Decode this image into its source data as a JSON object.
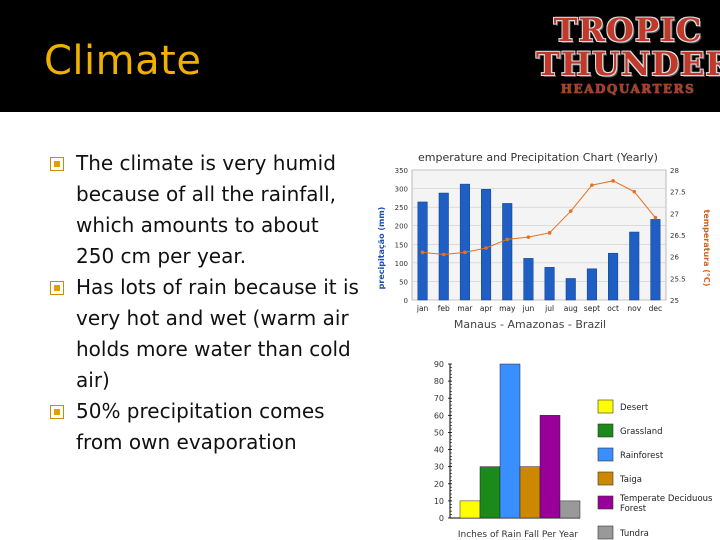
{
  "slide": {
    "title": "Climate",
    "logo": {
      "line1": "TROPIC",
      "line2": "THUNDER",
      "line3": "HEADQUARTERS"
    },
    "bullets": [
      "The climate is very humid because of all the rainfall, which amounts to about 250 cm per year.",
      "Has lots of rain because it is very hot and wet (warm air holds more water than cold air)",
      "50% precipitation comes from own evaporation"
    ]
  },
  "colors": {
    "title": "#f0b000",
    "bar_blue": "#1f5fc4",
    "line_orange": "#e8701a"
  },
  "chart_data": [
    {
      "type": "bar+line",
      "title": "emperature and Precipitation Chart (Yearly)",
      "subtitle": "Manaus - Amazonas - Brazil",
      "categories": [
        "jan",
        "feb",
        "mar",
        "apr",
        "may",
        "jun",
        "jul",
        "aug",
        "sept",
        "oct",
        "nov",
        "dec"
      ],
      "ylabel_left": "precipitação (mm)",
      "ylabel_right": "temperatura (°C)",
      "ylim_left": [
        0,
        350
      ],
      "ylim_right": [
        25,
        28
      ],
      "yticks_left": [
        "0",
        "50",
        "100",
        "150",
        "200",
        "250",
        "300",
        "350"
      ],
      "yticks_right": [
        "25",
        "25.5",
        "26",
        "26.5",
        "27",
        "27.5",
        "28"
      ],
      "series": [
        {
          "kind": "bar",
          "values": [
            264,
            288,
            312,
            298,
            260,
            112,
            88,
            58,
            84,
            126,
            183,
            217
          ]
        },
        {
          "kind": "line",
          "values": [
            26.1,
            26.05,
            26.1,
            26.2,
            26.4,
            26.45,
            26.55,
            27.05,
            27.65,
            27.75,
            27.5,
            26.9
          ]
        }
      ],
      "grid": true
    },
    {
      "type": "bar",
      "xlabel": "Inches of Rain Fall Per Year",
      "ylim": [
        0,
        90
      ],
      "yticks": [
        "0",
        "10",
        "20",
        "30",
        "40",
        "50",
        "60",
        "70",
        "80",
        "90"
      ],
      "categories": [
        "Desert",
        "Grassland",
        "Rainforest",
        "Taiga",
        "Temperate Deciduous Forest",
        "Tundra"
      ],
      "values": [
        10,
        30,
        90,
        30,
        60,
        10
      ],
      "colors": [
        "#ffff00",
        "#1a8a1a",
        "#3a8fff",
        "#cc8800",
        "#990099",
        "#999999"
      ],
      "legend_position": "right"
    }
  ]
}
